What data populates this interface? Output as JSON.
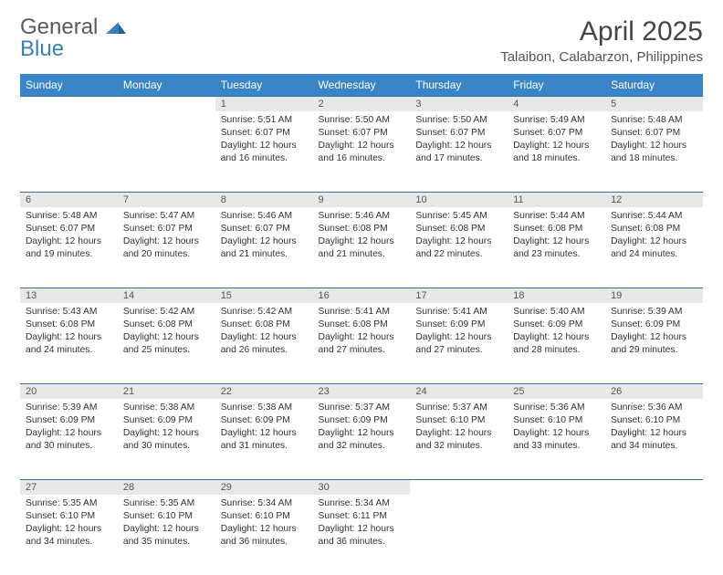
{
  "logo": {
    "word1": "General",
    "word2": "Blue"
  },
  "title": "April 2025",
  "location": "Talaibon, Calabarzon, Philippines",
  "colors": {
    "header_bg": "#3a85c7",
    "header_text": "#ffffff",
    "daynum_bg": "#e8e8e8",
    "rule": "#3a6ea0",
    "logo_gray": "#5a5a5a",
    "logo_blue": "#3a7fc0"
  },
  "weekdays": [
    "Sunday",
    "Monday",
    "Tuesday",
    "Wednesday",
    "Thursday",
    "Friday",
    "Saturday"
  ],
  "weeks": [
    [
      null,
      null,
      {
        "n": "1",
        "sr": "5:51 AM",
        "ss": "6:07 PM",
        "d1": "12 hours",
        "d2": "and 16 minutes."
      },
      {
        "n": "2",
        "sr": "5:50 AM",
        "ss": "6:07 PM",
        "d1": "12 hours",
        "d2": "and 16 minutes."
      },
      {
        "n": "3",
        "sr": "5:50 AM",
        "ss": "6:07 PM",
        "d1": "12 hours",
        "d2": "and 17 minutes."
      },
      {
        "n": "4",
        "sr": "5:49 AM",
        "ss": "6:07 PM",
        "d1": "12 hours",
        "d2": "and 18 minutes."
      },
      {
        "n": "5",
        "sr": "5:48 AM",
        "ss": "6:07 PM",
        "d1": "12 hours",
        "d2": "and 18 minutes."
      }
    ],
    [
      {
        "n": "6",
        "sr": "5:48 AM",
        "ss": "6:07 PM",
        "d1": "12 hours",
        "d2": "and 19 minutes."
      },
      {
        "n": "7",
        "sr": "5:47 AM",
        "ss": "6:07 PM",
        "d1": "12 hours",
        "d2": "and 20 minutes."
      },
      {
        "n": "8",
        "sr": "5:46 AM",
        "ss": "6:07 PM",
        "d1": "12 hours",
        "d2": "and 21 minutes."
      },
      {
        "n": "9",
        "sr": "5:46 AM",
        "ss": "6:08 PM",
        "d1": "12 hours",
        "d2": "and 21 minutes."
      },
      {
        "n": "10",
        "sr": "5:45 AM",
        "ss": "6:08 PM",
        "d1": "12 hours",
        "d2": "and 22 minutes."
      },
      {
        "n": "11",
        "sr": "5:44 AM",
        "ss": "6:08 PM",
        "d1": "12 hours",
        "d2": "and 23 minutes."
      },
      {
        "n": "12",
        "sr": "5:44 AM",
        "ss": "6:08 PM",
        "d1": "12 hours",
        "d2": "and 24 minutes."
      }
    ],
    [
      {
        "n": "13",
        "sr": "5:43 AM",
        "ss": "6:08 PM",
        "d1": "12 hours",
        "d2": "and 24 minutes."
      },
      {
        "n": "14",
        "sr": "5:42 AM",
        "ss": "6:08 PM",
        "d1": "12 hours",
        "d2": "and 25 minutes."
      },
      {
        "n": "15",
        "sr": "5:42 AM",
        "ss": "6:08 PM",
        "d1": "12 hours",
        "d2": "and 26 minutes."
      },
      {
        "n": "16",
        "sr": "5:41 AM",
        "ss": "6:08 PM",
        "d1": "12 hours",
        "d2": "and 27 minutes."
      },
      {
        "n": "17",
        "sr": "5:41 AM",
        "ss": "6:09 PM",
        "d1": "12 hours",
        "d2": "and 27 minutes."
      },
      {
        "n": "18",
        "sr": "5:40 AM",
        "ss": "6:09 PM",
        "d1": "12 hours",
        "d2": "and 28 minutes."
      },
      {
        "n": "19",
        "sr": "5:39 AM",
        "ss": "6:09 PM",
        "d1": "12 hours",
        "d2": "and 29 minutes."
      }
    ],
    [
      {
        "n": "20",
        "sr": "5:39 AM",
        "ss": "6:09 PM",
        "d1": "12 hours",
        "d2": "and 30 minutes."
      },
      {
        "n": "21",
        "sr": "5:38 AM",
        "ss": "6:09 PM",
        "d1": "12 hours",
        "d2": "and 30 minutes."
      },
      {
        "n": "22",
        "sr": "5:38 AM",
        "ss": "6:09 PM",
        "d1": "12 hours",
        "d2": "and 31 minutes."
      },
      {
        "n": "23",
        "sr": "5:37 AM",
        "ss": "6:09 PM",
        "d1": "12 hours",
        "d2": "and 32 minutes."
      },
      {
        "n": "24",
        "sr": "5:37 AM",
        "ss": "6:10 PM",
        "d1": "12 hours",
        "d2": "and 32 minutes."
      },
      {
        "n": "25",
        "sr": "5:36 AM",
        "ss": "6:10 PM",
        "d1": "12 hours",
        "d2": "and 33 minutes."
      },
      {
        "n": "26",
        "sr": "5:36 AM",
        "ss": "6:10 PM",
        "d1": "12 hours",
        "d2": "and 34 minutes."
      }
    ],
    [
      {
        "n": "27",
        "sr": "5:35 AM",
        "ss": "6:10 PM",
        "d1": "12 hours",
        "d2": "and 34 minutes."
      },
      {
        "n": "28",
        "sr": "5:35 AM",
        "ss": "6:10 PM",
        "d1": "12 hours",
        "d2": "and 35 minutes."
      },
      {
        "n": "29",
        "sr": "5:34 AM",
        "ss": "6:10 PM",
        "d1": "12 hours",
        "d2": "and 36 minutes."
      },
      {
        "n": "30",
        "sr": "5:34 AM",
        "ss": "6:11 PM",
        "d1": "12 hours",
        "d2": "and 36 minutes."
      },
      null,
      null,
      null
    ]
  ],
  "labels": {
    "sunrise": "Sunrise: ",
    "sunset": "Sunset: ",
    "daylight": "Daylight: "
  }
}
